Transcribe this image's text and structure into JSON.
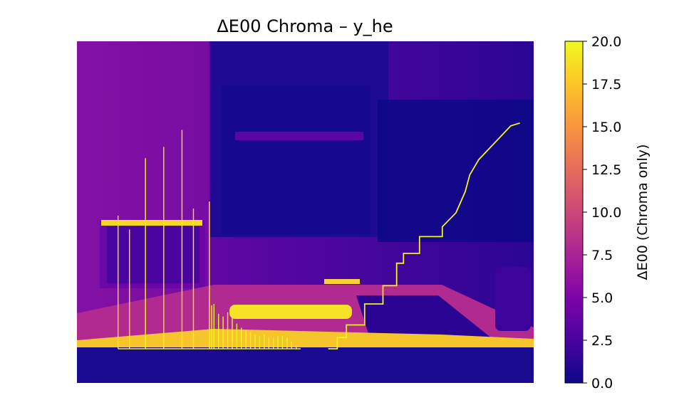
{
  "chart_data": {
    "type": "heatmap",
    "title": "ΔE00 Chroma – y_he",
    "colormap": "plasma",
    "axes_visible": false,
    "colorbar": {
      "label": "ΔE00 (Chroma only)",
      "range": [
        0,
        20
      ],
      "ticks": [
        "0.0",
        "2.5",
        "5.0",
        "7.5",
        "10.0",
        "12.5",
        "15.0",
        "17.5",
        "20.0"
      ]
    },
    "scene_description_regions": [
      {
        "name": "background-wall",
        "value": 3.5
      },
      {
        "name": "monitor-dark",
        "value": 0.6
      },
      {
        "name": "laptop",
        "value": 4.5
      },
      {
        "name": "desk-edge-highlight",
        "value": 17.5
      },
      {
        "name": "floor-band",
        "value": 1.0
      }
    ],
    "overlay_series": [
      {
        "kind": "histogram-spikes",
        "x": [
          0.09,
          0.115,
          0.15,
          0.19,
          0.23,
          0.255,
          0.29,
          0.295,
          0.3,
          0.31,
          0.32,
          0.33,
          0.34,
          0.35,
          0.36,
          0.37,
          0.38,
          0.39,
          0.4,
          0.41,
          0.42,
          0.43,
          0.44,
          0.45,
          0.46,
          0.47,
          0.48
        ],
        "heights": [
          9.5,
          8.5,
          13.6,
          14.4,
          15.6,
          10.0,
          10.5,
          3.1,
          3.2,
          2.5,
          2.3,
          2.6,
          2.2,
          1.8,
          1.5,
          1.3,
          1.2,
          1.0,
          0.9,
          1.0,
          0.8,
          0.8,
          0.9,
          0.9,
          0.8,
          0.5,
          0.2
        ]
      },
      {
        "kind": "cumulative-step-line",
        "x": [
          0.55,
          0.57,
          0.57,
          0.59,
          0.59,
          0.63,
          0.63,
          0.67,
          0.67,
          0.7,
          0.7,
          0.715,
          0.715,
          0.75,
          0.75,
          0.8,
          0.8,
          0.83,
          0.85,
          0.86,
          0.88,
          0.95,
          0.97
        ],
        "y": [
          0.0,
          0.0,
          0.8,
          0.8,
          1.7,
          1.7,
          3.2,
          3.2,
          4.5,
          4.5,
          6.1,
          6.1,
          6.8,
          6.8,
          8.0,
          8.0,
          8.7,
          9.7,
          11.2,
          12.4,
          13.5,
          15.9,
          16.1
        ]
      }
    ]
  }
}
